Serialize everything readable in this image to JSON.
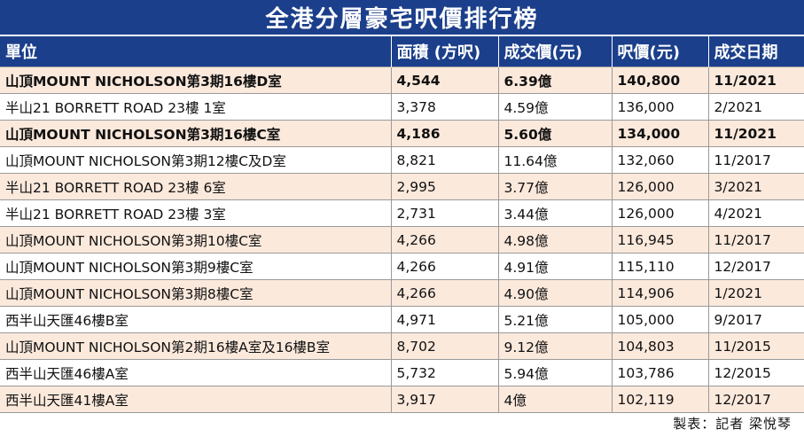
{
  "title": "全港分層豪宅呎價排行榜",
  "table": {
    "headers": [
      "單位",
      "面積 (方呎)",
      "成交價(元)",
      "呎價(元)",
      "成交日期"
    ],
    "rows": [
      {
        "unit": "山頂MOUNT NICHOLSON第3期16樓D室",
        "area": "4,544",
        "price": "6.39億",
        "psf": "140,800",
        "date": "11/2021",
        "bold": true
      },
      {
        "unit": "半山21 BORRETT ROAD 23樓 1室",
        "area": "3,378",
        "price": "4.59億",
        "psf": "136,000",
        "date": "2/2021",
        "bold": false
      },
      {
        "unit": "山頂MOUNT NICHOLSON第3期16樓C室",
        "area": "4,186",
        "price": "5.60億",
        "psf": "134,000",
        "date": "11/2021",
        "bold": true
      },
      {
        "unit": "山頂MOUNT NICHOLSON第3期12樓C及D室",
        "area": "8,821",
        "price": "11.64億",
        "psf": "132,060",
        "date": "11/2017",
        "bold": false
      },
      {
        "unit": "半山21 BORRETT ROAD 23樓 6室",
        "area": "2,995",
        "price": "3.77億",
        "psf": "126,000",
        "date": "3/2021",
        "bold": false
      },
      {
        "unit": "半山21 BORRETT ROAD 23樓 3室",
        "area": "2,731",
        "price": "3.44億",
        "psf": "126,000",
        "date": "4/2021",
        "bold": false
      },
      {
        "unit": "山頂MOUNT NICHOLSON第3期10樓C室",
        "area": "4,266",
        "price": "4.98億",
        "psf": "116,945",
        "date": "11/2017",
        "bold": false
      },
      {
        "unit": "山頂MOUNT NICHOLSON第3期9樓C室",
        "area": "4,266",
        "price": "4.91億",
        "psf": "115,110",
        "date": "12/2017",
        "bold": false
      },
      {
        "unit": "山頂MOUNT NICHOLSON第3期8樓C室",
        "area": "4,266",
        "price": "4.90億",
        "psf": "114,906",
        "date": "1/2021",
        "bold": false
      },
      {
        "unit": "西半山天匯46樓B室",
        "area": "4,971",
        "price": "5.21億",
        "psf": "105,000",
        "date": "9/2017",
        "bold": false
      },
      {
        "unit": "山頂MOUNT NICHOLSON第2期16樓A室及16樓B室",
        "area": "8,702",
        "price": "9.12億",
        "psf": "104,803",
        "date": "11/2015",
        "bold": false
      },
      {
        "unit": "西半山天匯46樓A室",
        "area": "5,732",
        "price": "5.94億",
        "psf": "103,786",
        "date": "12/2015",
        "bold": false
      },
      {
        "unit": "西半山天匯41樓A室",
        "area": "3,917",
        "price": "4億",
        "psf": "102,119",
        "date": "12/2017",
        "bold": false
      }
    ]
  },
  "credit": "製表：記者 梁悅琴",
  "colors": {
    "header_bg": "#1b3f8b",
    "row_alt": "#fbe9dc",
    "header_text": "#ffffff"
  }
}
